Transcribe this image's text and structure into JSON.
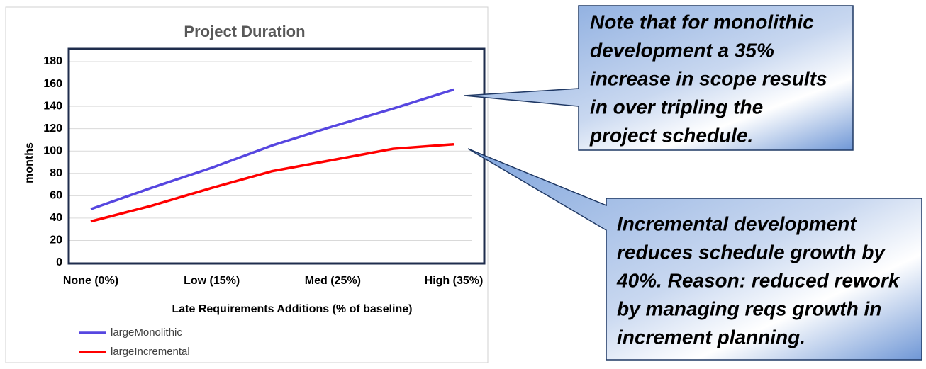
{
  "chart_data": {
    "type": "line",
    "title": "Project Duration",
    "x_label": "Late Requirements Additions (% of baseline)",
    "y_label": "months",
    "categories": [
      "None (0%)",
      null,
      "Low (15%)",
      null,
      "Med (25%)",
      null,
      "High (35%)"
    ],
    "series": [
      {
        "name": "largeMonolithic",
        "color": "#5646e0",
        "values": [
          48,
          67,
          85,
          105,
          122,
          138,
          155
        ]
      },
      {
        "name": "largeIncremental",
        "color": "#ff0000",
        "values": [
          37,
          51,
          67,
          82,
          92,
          102,
          106
        ]
      }
    ],
    "ylim": [
      0,
      180
    ],
    "yticks": [
      0,
      20,
      40,
      60,
      80,
      100,
      120,
      140,
      160,
      180
    ],
    "grid": true
  },
  "callouts": [
    {
      "lines": [
        "Note that for monolithic",
        "development  a 35%",
        "increase in scope results",
        "in over tripling the",
        "project schedule."
      ]
    },
    {
      "lines": [
        "Incremental development",
        "reduces schedule growth by",
        "40%. Reason: reduced rework",
        "by managing  reqs growth in",
        "increment planning."
      ]
    }
  ]
}
